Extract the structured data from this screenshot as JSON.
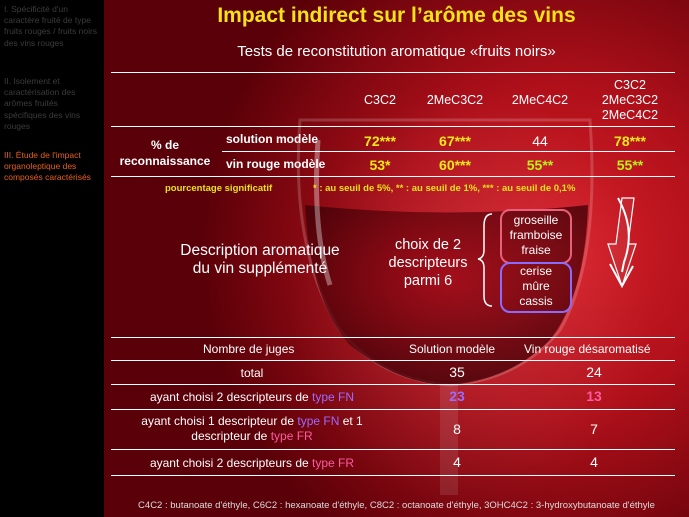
{
  "sidebar": {
    "items": [
      "I. Spécificité d'un caractère fruité de type fruits rouges / fruits noirs des vins rouges",
      "II. Isolement et caractérisation des arômes fruités spécifiques des vins rouges",
      "III. Étude de l'impact organoleptique des composés caractérisés"
    ]
  },
  "title": "Impact indirect sur l’arôme des vins",
  "subtitle": "Tests de reconstitution aromatique «fruits noirs»",
  "table1": {
    "headers": [
      "C3C2",
      "2MeC3C2",
      "2MeC4C2",
      "C3C2\n2MeC3C2\n2MeC4C2"
    ],
    "header_last": [
      "C3C2",
      "2MeC3C2",
      "2MeC4C2"
    ],
    "group_label": [
      "% de",
      "reconnaissance"
    ],
    "rows": [
      {
        "label": "solution modèle",
        "values": [
          "72***",
          "67***",
          "44",
          "78***"
        ]
      },
      {
        "label": "vin rouge modèle",
        "values": [
          "53*",
          "60***",
          "55**",
          "55**"
        ]
      }
    ],
    "note_left": "pourcentage significatif",
    "note_right": "* : au seuil de 5%, ** : au seuil de 1%, *** : au seuil de 0,1%"
  },
  "description": {
    "label_lines": [
      "Description aromatique",
      "du vin supplémenté"
    ],
    "choice_lines": [
      "choix de 2",
      "descripteurs",
      "parmi 6"
    ],
    "red_fruits": [
      "groseille",
      "framboise",
      "fraise"
    ],
    "black_fruits": [
      "cerise",
      "mûre",
      "cassis"
    ]
  },
  "table2": {
    "headers": [
      "Nombre de juges",
      "Solution modèle",
      "Vin rouge désaromatisé"
    ],
    "rows": [
      {
        "label": "total",
        "values": [
          "35",
          "24"
        ]
      },
      {
        "label_pre": "ayant choisi 2 descripteurs de ",
        "label_type": "type FN",
        "values": [
          "23",
          "13"
        ]
      },
      {
        "label_a": "ayant choisi 1 descripteur de ",
        "label_type1": "type FN",
        "label_b": " et 1",
        "label_c": "descripteur de ",
        "label_type2": "type FR",
        "values": [
          "8",
          "7"
        ]
      },
      {
        "label_pre": "ayant choisi 2 descripteurs de ",
        "label_type": "type FR",
        "values": [
          "4",
          "4"
        ]
      }
    ]
  },
  "bottom_note": "C4C2 : butanoate d'éthyle, C6C2 : hexanoate d'éthyle, C8C2 : octanoate d'éthyle, 3OHC4C2 : 3-hydroxybutanoate d'éthyle",
  "colors": {
    "title": "#f2e21a",
    "significant": "#b9f21a",
    "type_fn": "#9b6bff",
    "type_fr": "#ff5aa0"
  }
}
